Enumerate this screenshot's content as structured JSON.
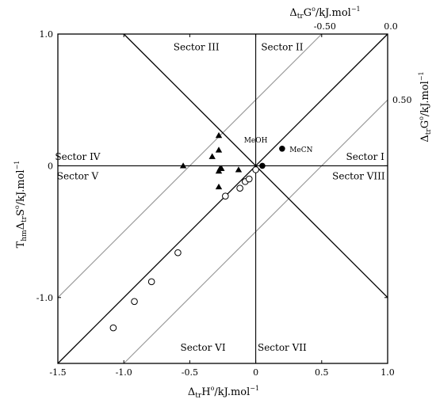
{
  "chart_data": {
    "type": "scatter",
    "xlabel": "Δ_tr H^o/kJ.mol^-1",
    "ylabel": "T_hm Δ_tr S^o/kJ.mol^-1",
    "top_axis_label": "Δ_tr G^o/kJ.mol^-1",
    "right_axis_label": "Δ_tr G^o/kJ.mol^-1",
    "xlim": [
      -1.5,
      1.0
    ],
    "ylim": [
      -1.5,
      1.0
    ],
    "x_ticks": [
      -1.5,
      -1.0,
      -0.5,
      0,
      0.5,
      1.0
    ],
    "x_tick_labels": [
      "-1.5",
      "-1.0",
      "-0.5",
      "0",
      "0.5",
      "1.0"
    ],
    "y_ticks": [
      -1.0,
      0,
      1.0
    ],
    "y_tick_labels": [
      "-1.0",
      "0",
      "1.0"
    ],
    "top_ticks": [
      {
        "value": -0.5,
        "label": "-0.50"
      },
      {
        "value": 0.0,
        "label": "0.0"
      }
    ],
    "right_ticks": [
      {
        "value": 0.5,
        "label": "0.50"
      }
    ],
    "guide_lines": {
      "diagonal_through_origin": {
        "slope": 1,
        "intercept": 0
      },
      "antidiagonal_through_origin": {
        "slope": -1,
        "intercept": 0
      },
      "gray_iso_dG": [
        -0.5,
        0.5
      ]
    },
    "sectors": [
      {
        "label": "Sector I",
        "x": 0.83,
        "y": 0.07
      },
      {
        "label": "Sector II",
        "x": 0.2,
        "y": 0.9
      },
      {
        "label": "Sector III",
        "x": -0.45,
        "y": 0.9
      },
      {
        "label": "Sector IV",
        "x": -1.35,
        "y": 0.07
      },
      {
        "label": "Sector V",
        "x": -1.35,
        "y": -0.08
      },
      {
        "label": "Sector VI",
        "x": -0.4,
        "y": -1.38
      },
      {
        "label": "Sector VII",
        "x": 0.2,
        "y": -1.38
      },
      {
        "label": "Sector VIII",
        "x": 0.78,
        "y": -0.08
      }
    ],
    "annotations": [
      {
        "text": "MeOH",
        "x": 0.0,
        "y": 0.2
      },
      {
        "text": "MeCN",
        "x": 0.22,
        "y": 0.13
      }
    ],
    "series": [
      {
        "marker": "triangle",
        "points": [
          [
            -0.28,
            0.23
          ],
          [
            -0.28,
            0.12
          ],
          [
            -0.33,
            0.07
          ],
          [
            -0.55,
            0.0
          ],
          [
            -0.27,
            -0.02
          ],
          [
            -0.26,
            -0.02
          ],
          [
            -0.28,
            -0.04
          ],
          [
            -0.13,
            -0.03
          ],
          [
            -0.28,
            -0.16
          ]
        ]
      },
      {
        "marker": "open-circle",
        "points": [
          [
            -1.08,
            -1.23
          ],
          [
            -0.92,
            -1.03
          ],
          [
            -0.79,
            -0.88
          ],
          [
            -0.59,
            -0.66
          ],
          [
            -0.23,
            -0.23
          ],
          [
            -0.12,
            -0.17
          ],
          [
            -0.08,
            -0.12
          ],
          [
            -0.05,
            -0.1
          ],
          [
            0.0,
            -0.03
          ]
        ]
      },
      {
        "marker": "filled-circle",
        "points": [
          [
            0.05,
            0.0
          ],
          [
            0.2,
            0.13
          ]
        ]
      }
    ]
  }
}
